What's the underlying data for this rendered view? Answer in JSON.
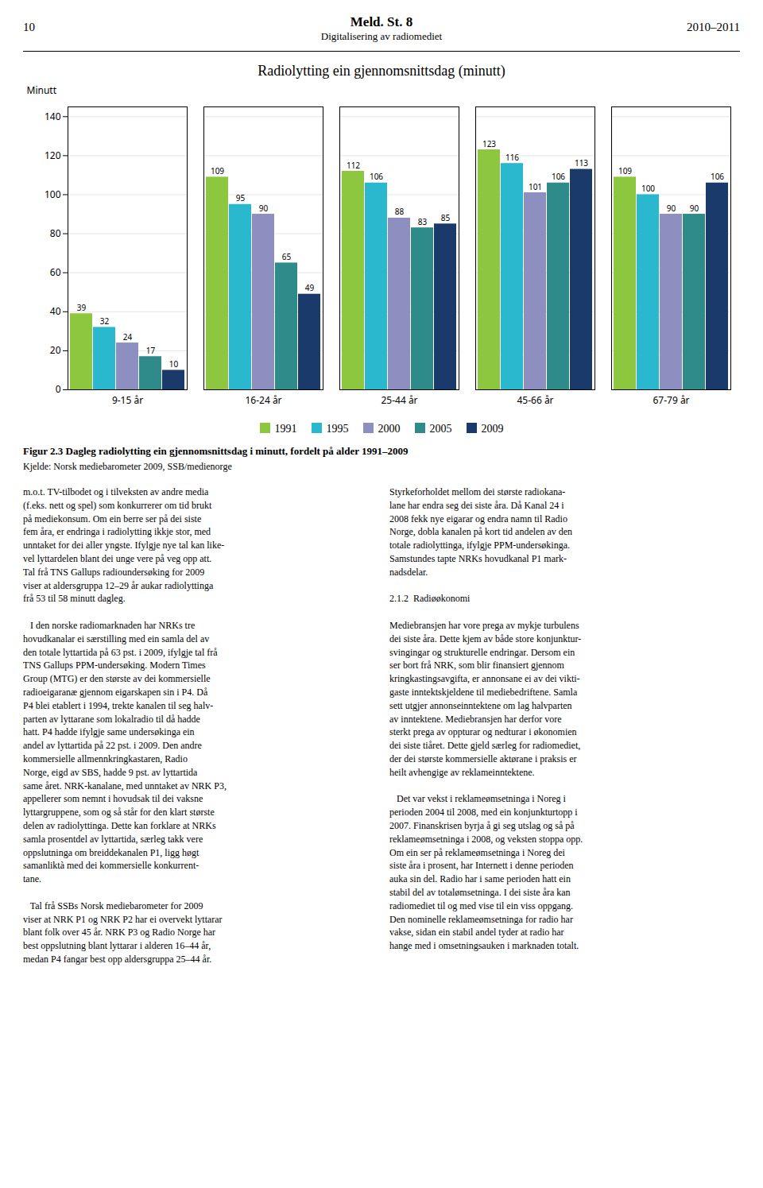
{
  "header_left": "10",
  "header_center": "Meld. St. 8",
  "header_subtitle": "Digitalisering av radiomediet",
  "header_right": "2010–2011",
  "figure_caption": "Figur 2.3  Dagleg radiolytting ein gjennomsnittsdag i minutt, fordelt på alder 1991–2009",
  "source_caption": "Kjelde: Norsk mediebarometer 2009, SSB/medienorge",
  "body_left": "m.o.t. TV-tilbodet og i tilveksten av andre media\n(f.eks. nett og spel) som konkurrerer om tid brukt\npå mediekonsum. Om ein berre ser på dei siste\nfem åra, er endringa i radiolytting ikkje stor, med\nunntaket for dei aller yngste. Ifylgje nye tal kan like-\nvel lyttardelen blant dei unge vere på veg opp att.\nTal frå TNS Gallups radioundersøking for 2009\nviser at aldersgruppa 12–29 år aukar radiolyttinga\nfrå 53 til 58 minutt dagleg.\n\n   I den norske radiomarknaden har NRKs tre\nhovudkanalar ei særstilling med ein samla del av\nden totale lyttartida på 63 pst. i 2009, ifylgje tal frå\nTNS Gallups PPM-undersøking. Modern Times\nGroup (MTG) er den største av dei kommersielle\nradioeigaranæ gjennom eigarskapen sin i P4. Då\nP4 blei etablert i 1994, trekte kanalen til seg halv-\nparten av lyttarane som lokalradio til då hadde\nhatt. P4 hadde ifylgje same undersøkinga ein\nandel av lyttartida på 22 pst. i 2009. Den andre\nkommersielle allmennkringkastaren, Radio\nNorge, eigd av SBS, hadde 9 pst. av lyttartida\nsame året. NRK-kanalane, med unntaket av NRK P3,\nappellerer som nemnt i hovudsak til dei vaksne\nlyttargruppene, som og så står for den klart største\ndelen av radiolyttinga. Dette kan forklare at NRKs\nsamla prosentdel av lyttartida, særleg takk vere\noppslutninga om breiddekanalen P1, ligg høgt\nsamanliktà med dei kommersielle konkurrent-\ntane.\n\n   Tal frå SSBs Norsk mediebarometer for 2009\nviser at NRK P1 og NRK P2 har ei overvekt lyttarar\nblant folk over 45 år. NRK P3 og Radio Norge har\nbest oppslutning blant lyttarar i alderen 16–44 år,\nmedan P4 fangar best opp aldersgruppa 25–44 år.",
  "body_right": "Styrkeforholdet mellom dei største radiokana-\nlane har endra seg dei siste åra. Då Kanal 24 i\n2008 fekk nye eigarar og endra namn til Radio\nNorge, dobla kanalen på kort tid andelen av den\ntotale radiolyttinga, ifylgje PPM-undersøkinga.\nSamstundes tapte NRKs hovudkanal P1 mark-\nnadsdelar.\n\n2.1.2  Radiøøkonomi\n\nMediebransjen har vore prega av mykje turbulens\ndei siste åra. Dette kjem av både store konjunktur-\nsvingingar og strukturelle endringar. Dersom ein\nser bort frå NRK, som blir finansiert gjennom\nkringkastingsavgifta, er annonsane ei av dei vikti-\ngaste inntektskjeldene til mediebedriftene. Samla\nsett utgjer annonseinntektene om lag halvparten\nav inntektene. Mediebransjen har derfor vore\nsterkt prega av oppturar og nedturar i økonomien\ndei siste tiåret. Dette gjeld særleg for radiomediet,\nder dei største kommersielle aktørane i praksis er\nheilt avhengige av reklameinntektene.\n\n   Det var vekst i reklameømsetninga i Noreg i\nperioden 2004 til 2008, med ein konjunkturtopp i\n2007. Finanskrisen byrja å gi seg utslag og så på\nreklameømsetninga i 2008, og veksten stoppa opp.\nOm ein ser på reklameømsetninga i Noreg dei\nsiste åra i prosent, har Internett i denne perioden\nauka sin del. Radio har i same perioden hatt ein\nstabil del av totalømsetninga. I dei siste åra kan\nradiomediet til og med vise til ein viss oppgang.\nDen nominelle reklameømsetninga for radio har\nvakse, sidan ein stabil andel tyder at radio har\nhange med i omsetningsauken i marknaden totalt.",
  "chart_data": {
    "type": "bar",
    "title": "Radiolytting ein gjennomsnittsdag (minutt)",
    "ylabel": "Minutt",
    "categories": [
      "9-15 år",
      "16-24 år",
      "25-44 år",
      "45-66 år",
      "67-79 år"
    ],
    "series": [
      {
        "name": "1991",
        "color": "#8DC63F",
        "values": [
          39,
          109,
          112,
          123,
          109
        ]
      },
      {
        "name": "1995",
        "color": "#29B8CE",
        "values": [
          32,
          95,
          106,
          116,
          100
        ]
      },
      {
        "name": "2000",
        "color": "#8C8FBF",
        "values": [
          24,
          90,
          88,
          101,
          90
        ]
      },
      {
        "name": "2005",
        "color": "#2E8B8A",
        "values": [
          17,
          65,
          83,
          106,
          90
        ]
      },
      {
        "name": "2009",
        "color": "#1A3A6B",
        "values": [
          10,
          49,
          85,
          113,
          106
        ]
      }
    ],
    "ylim": [
      0,
      145
    ],
    "yticks": [
      0,
      20,
      40,
      60,
      80,
      100,
      120,
      140
    ],
    "grid": true,
    "data_labels": true,
    "legend": "bottom"
  }
}
